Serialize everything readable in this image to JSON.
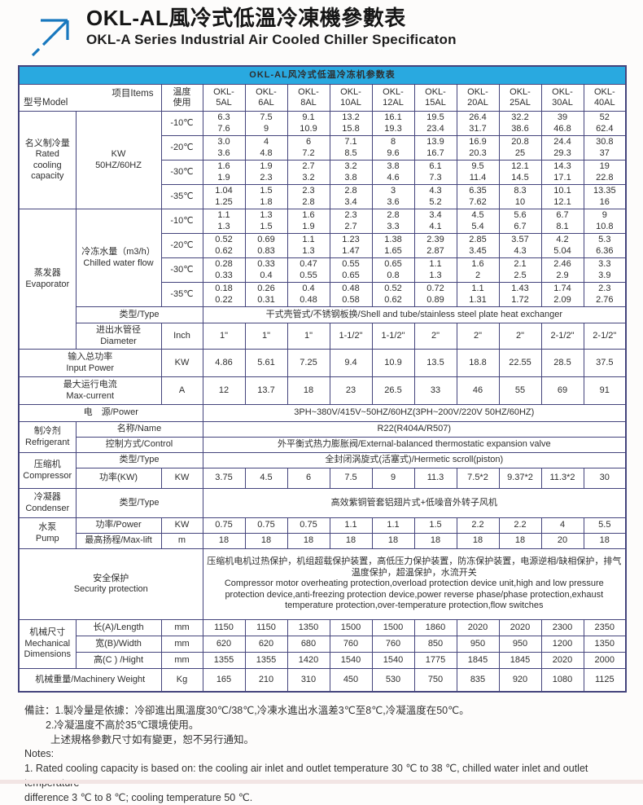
{
  "header": {
    "title_zh": "OKL-AL風冷式低溫冷凍機參數表",
    "title_en": "OKL-A Series Industrial Air Cooled Chiller Specificaton"
  },
  "colors": {
    "accent_bar": "#29a9e0",
    "table_border": "#44447c",
    "row_shade": "#d9d9d9",
    "logo_blue": "#1878be"
  },
  "table": {
    "title": "OKL-AL风冷式低温冷冻机参数表",
    "corner": {
      "model_label": "型号Model",
      "items_label": "项目Items"
    },
    "temp_use_label": "温度\n使用",
    "models": [
      "OKL-\n5AL",
      "OKL-\n6AL",
      "OKL-\n8AL",
      "OKL-\n10AL",
      "OKL-\n12AL",
      "OKL-\n15AL",
      "OKL-\n20AL",
      "OKL-\n25AL",
      "OKL-\n30AL",
      "OKL-\n40AL"
    ],
    "rated_cooling": {
      "label": "名义制冷量\nRated\ncooling\ncapacity",
      "unit": "KW\n50HZ/60HZ",
      "rows": [
        {
          "temp": "-10℃",
          "values": [
            "6.3\n7.6",
            "7.5\n9",
            "9.1\n10.9",
            "13.2\n15.8",
            "16.1\n19.3",
            "19.5\n23.4",
            "26.4\n31.7",
            "32.2\n38.6",
            "39\n46.8",
            "52\n62.4"
          ]
        },
        {
          "temp": "-20℃",
          "values": [
            "3.0\n3.6",
            "4\n4.8",
            "6\n7.2",
            "7.1\n8.5",
            "8\n9.6",
            "13.9\n16.7",
            "16.9\n20.3",
            "20.8\n25",
            "24.4\n29.3",
            "30.8\n37"
          ]
        },
        {
          "temp": "-30℃",
          "values": [
            "1.6\n1.9",
            "1.9\n2.3",
            "2.7\n3.2",
            "3.2\n3.8",
            "3.8\n4.6",
            "6.1\n7.3",
            "9.5\n11.4",
            "12.1\n14.5",
            "14.3\n17.1",
            "19\n22.8"
          ]
        },
        {
          "temp": "-35℃",
          "values": [
            "1.04\n1.25",
            "1.5\n1.8",
            "2.3\n2.8",
            "2.8\n3.4",
            "3\n3.6",
            "4.3\n5.2",
            "6.35\n7.62",
            "8.3\n10",
            "10.1\n12.1",
            "13.35\n16"
          ]
        }
      ]
    },
    "evaporator": {
      "label": "蒸发器\nEvaporator",
      "flow_label": "冷冻水量（m3/h）\nChilled water flow",
      "rows": [
        {
          "temp": "-10℃",
          "values": [
            "1.1\n1.3",
            "1.3\n1.5",
            "1.6\n1.9",
            "2.3\n2.7",
            "2.8\n3.3",
            "3.4\n4.1",
            "4.5\n5.4",
            "5.6\n6.7",
            "6.7\n8.1",
            "9\n10.8"
          ]
        },
        {
          "temp": "-20℃",
          "values": [
            "0.52\n0.62",
            "0.69\n0.83",
            "1.1\n1.3",
            "1.23\n1.47",
            "1.38\n1.65",
            "2.39\n2.87",
            "2.85\n3.45",
            "3.57\n4.3",
            "4.2\n5.04",
            "5.3\n6.36"
          ]
        },
        {
          "temp": "-30℃",
          "values": [
            "0.28\n0.33",
            "0.33\n0.4",
            "0.47\n0.55",
            "0.55\n0.65",
            "0.65\n0.8",
            "1.1\n1.3",
            "1.6\n2",
            "2.1\n2.5",
            "2.46\n2.9",
            "3.3\n3.9"
          ]
        },
        {
          "temp": "-35℃",
          "values": [
            "0.18\n0.22",
            "0.26\n0.31",
            "0.4\n0.48",
            "0.48\n0.58",
            "0.52\n0.62",
            "0.72\n0.89",
            "1.1\n1.31",
            "1.43\n1.72",
            "1.74\n2.09",
            "2.3\n2.76"
          ]
        }
      ],
      "type_label": "类型/Type",
      "type_value": "干式壳管式/不锈钢板换/Shell and tube/stainless steel plate heat exchanger",
      "diameter_label": "进出水管径\nDiameter",
      "diameter_unit": "Inch",
      "diameter_values": [
        "1\"",
        "1\"",
        "1\"",
        "1-1/2\"",
        "1-1/2\"",
        "2\"",
        "2\"",
        "2\"",
        "2-1/2\"",
        "2-1/2\""
      ]
    },
    "input_power": {
      "label": "输入总功率\nInput Power",
      "unit": "KW",
      "values": [
        "4.86",
        "5.61",
        "7.25",
        "9.4",
        "10.9",
        "13.5",
        "18.8",
        "22.55",
        "28.5",
        "37.5"
      ]
    },
    "max_current": {
      "label": "最大运行电流\nMax-current",
      "unit": "A",
      "values": [
        "12",
        "13.7",
        "18",
        "23",
        "26.5",
        "33",
        "46",
        "55",
        "69",
        "91"
      ]
    },
    "power_supply": {
      "label": "电　源/Power",
      "value": "3PH~380V/415V~50HZ/60HZ(3PH~200V/220V  50HZ/60HZ)"
    },
    "refrigerant": {
      "label": "制冷剂\nRefrigerant",
      "name_label": "名称/Name",
      "name_value": "R22(R404A/R507)",
      "control_label": "控制方式/Control",
      "control_value": "外平衡式热力膨胀阀/External-balanced thermostatic expansion valve"
    },
    "compressor": {
      "label": "压缩机\nCompressor",
      "type_label": "类型/Type",
      "type_value": "全封闭涡旋式(活塞式)/Hermetic scroll(piston)",
      "power_label": "功率(KW)",
      "power_unit": "KW",
      "power_values": [
        "3.75",
        "4.5",
        "6",
        "7.5",
        "9",
        "11.3",
        "7.5*2",
        "9.37*2",
        "11.3*2",
        "30"
      ]
    },
    "condenser": {
      "label": "冷凝器\nCondenser",
      "type_label": "类型/Type",
      "type_value": "高效紫铜管套铝翅片式+低噪音外转子风机"
    },
    "pump": {
      "label": "水泵\nPump",
      "power_label": "功率/Power",
      "power_unit": "KW",
      "power_values": [
        "0.75",
        "0.75",
        "0.75",
        "1.1",
        "1.1",
        "1.5",
        "2.2",
        "2.2",
        "4",
        "5.5"
      ],
      "lift_label": "最高扬程/Max-lift",
      "lift_unit": "m",
      "lift_values": [
        "18",
        "18",
        "18",
        "18",
        "18",
        "18",
        "18",
        "18",
        "20",
        "18"
      ]
    },
    "security": {
      "label": "安全保护\nSecurity protection",
      "text": "压缩机电机过热保护，机组超载保护装置，高低压力保护装置，防冻保护装置，电源逆相/缺相保护，排气温度保护，超温保护，水流开关\nCompressor motor overheating protection,overload protection device unit,high and low pressure protection device,anti-freezing protection device,power reverse phase/phase protection,exhaust temperature protection,over-temperature protection,flow switches"
    },
    "mechanical": {
      "label": "机械尺寸\nMechanical\nDimensions",
      "rows": [
        {
          "label": "长(A)/Length",
          "unit": "mm",
          "values": [
            "1150",
            "1150",
            "1350",
            "1500",
            "1500",
            "1860",
            "2020",
            "2020",
            "2300",
            "2350"
          ]
        },
        {
          "label": "宽(B)/Width",
          "unit": "mm",
          "values": [
            "620",
            "620",
            "680",
            "760",
            "760",
            "850",
            "950",
            "950",
            "1200",
            "1350"
          ]
        },
        {
          "label": "高(C ) /Hight",
          "unit": "mm",
          "values": [
            "1355",
            "1355",
            "1420",
            "1540",
            "1540",
            "1775",
            "1845",
            "1845",
            "2020",
            "2000"
          ]
        }
      ]
    },
    "weight": {
      "label": "机械重量/Machinery Weight",
      "unit": "Kg",
      "values": [
        "165",
        "210",
        "310",
        "450",
        "530",
        "750",
        "835",
        "920",
        "1080",
        "1125"
      ]
    }
  },
  "notes": {
    "lines": [
      "備註：1.製冷量是依據：冷卻進出風溫度30℃/38℃,冷凍水進出水溫差3℃至8℃,冷凝溫度在50℃。",
      "2.冷凝溫度不高於35℃環境使用。",
      "上述規格參數尺寸如有變更，恕不另行通知。",
      "Notes:",
      "1. Rated cooling capacity is based on: the cooling air inlet and outlet temperature 30 ℃ to 38 ℃, chilled water inlet and outlet temperature",
      "difference 3 ℃ to 8 ℃; cooling temperature 50 ℃."
    ]
  }
}
